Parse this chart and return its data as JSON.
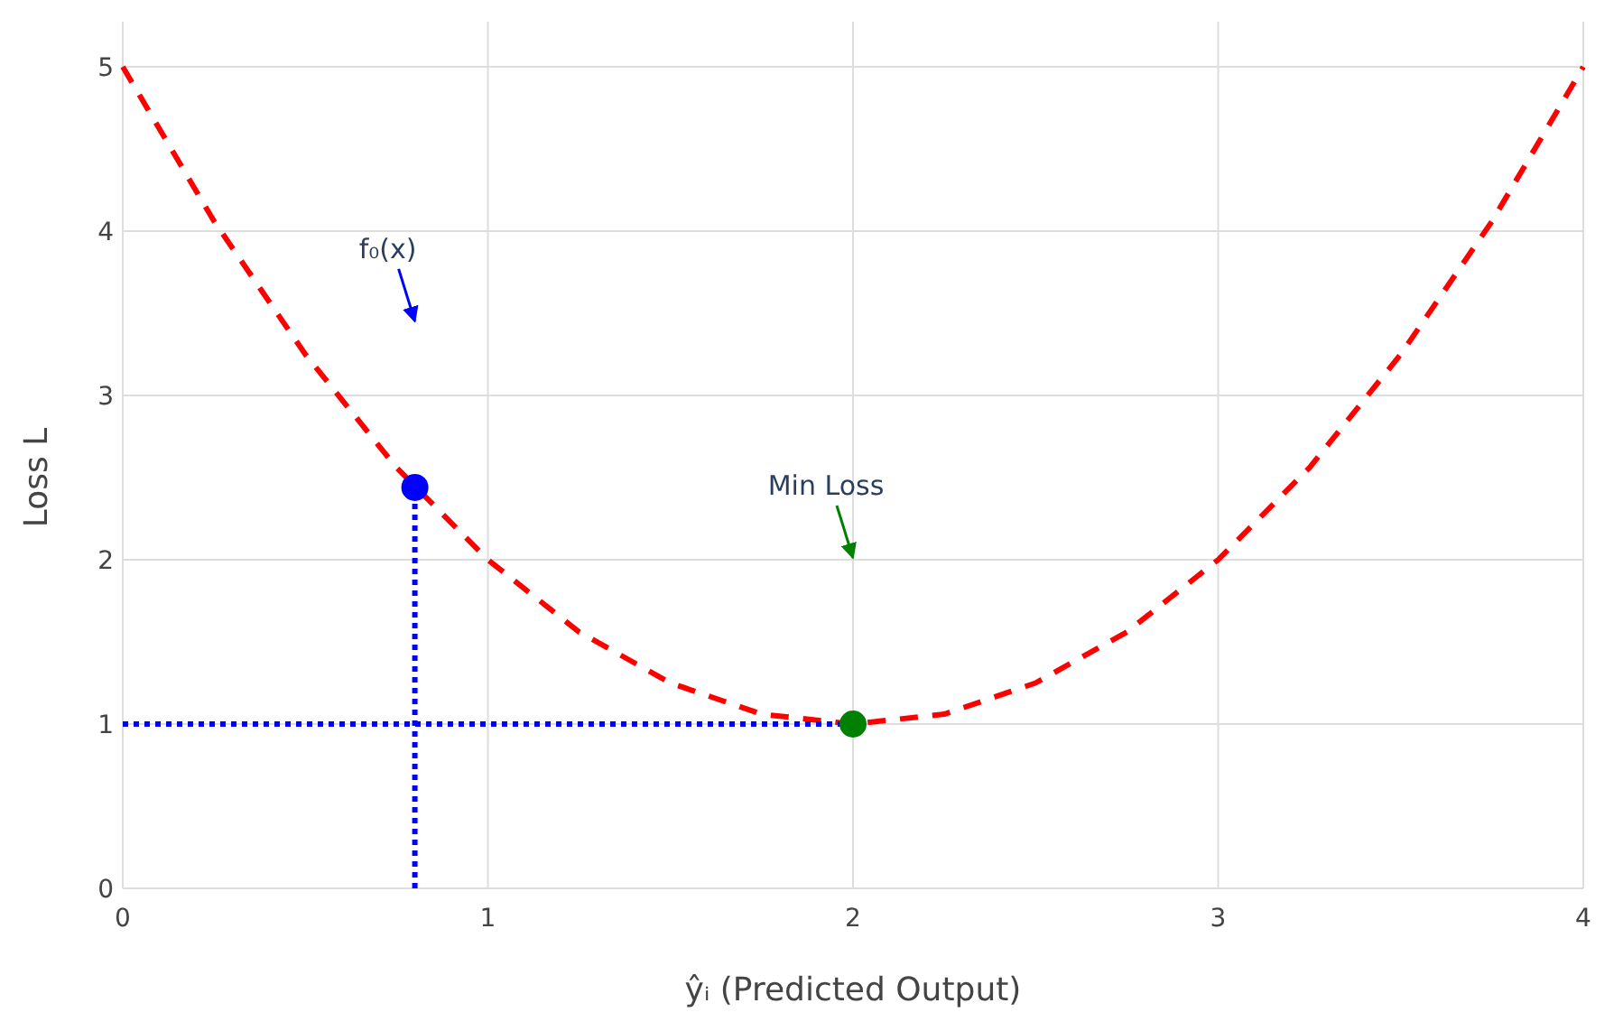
{
  "chart_data": {
    "type": "line",
    "xlabel": "ŷᵢ (Predicted Output)",
    "ylabel": "Loss L",
    "xlim": [
      0,
      4
    ],
    "ylim": [
      0,
      5
    ],
    "xticks": [
      0,
      1,
      2,
      3,
      4
    ],
    "yticks": [
      0,
      1,
      2,
      3,
      4,
      5
    ],
    "grid": true,
    "series": [
      {
        "color": "#ff0000",
        "line_style": "dashed",
        "marker": "none",
        "x": [
          0,
          0.25,
          0.5,
          0.75,
          1,
          1.25,
          1.5,
          1.75,
          2,
          2.25,
          2.5,
          2.75,
          3,
          3.25,
          3.5,
          3.75,
          4
        ],
        "values": [
          5,
          4.06,
          3.25,
          2.56,
          2,
          1.56,
          1.25,
          1.06,
          1,
          1.06,
          1.25,
          1.56,
          2,
          2.56,
          3.25,
          4.06,
          5
        ]
      },
      {
        "color": "#0000ff",
        "line_style": "dotted",
        "marker": "none",
        "x": [
          0.8,
          0.8
        ],
        "values": [
          0,
          2.44
        ]
      },
      {
        "color": "#0000ff",
        "line_style": "dotted",
        "marker": "none",
        "x": [
          0,
          2
        ],
        "values": [
          1,
          1
        ]
      },
      {
        "type": "scatter",
        "color": "#0000ff",
        "marker": "circle",
        "x": [
          0.8
        ],
        "values": [
          2.44
        ]
      },
      {
        "type": "scatter",
        "color": "#008000",
        "marker": "circle",
        "x": [
          2
        ],
        "values": [
          1
        ]
      }
    ],
    "annotations": [
      "f₀(x)",
      "Min Loss"
    ]
  }
}
